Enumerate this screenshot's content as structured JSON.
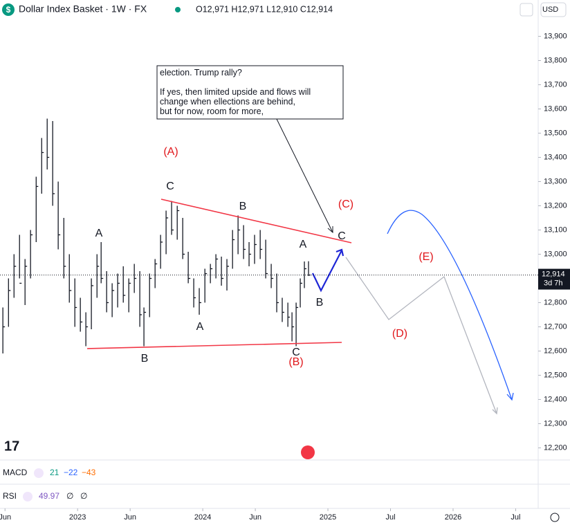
{
  "header": {
    "symbol_title": "Dollar Index Basket · 1W · FX",
    "ohlc": "O12,971 H12,971 L12,910 C12,914",
    "currency": "USD"
  },
  "note": {
    "lines": [
      "election. Trump rally?",
      "If yes, then limited upside and flows will",
      "change when ellections are behind,",
      " but for now, room for more,"
    ]
  },
  "indicators": {
    "macd": {
      "name": "MACD",
      "values": [
        "21",
        "−22",
        "−43"
      ]
    },
    "rsi": {
      "name": "RSI",
      "values": [
        "49.97",
        "∅",
        "∅"
      ]
    }
  },
  "chart_data": {
    "type": "ohlc",
    "color": "#131722",
    "x": [
      2022.403,
      2022.448,
      2022.492,
      2022.536,
      2022.58,
      2022.624,
      2022.669,
      2022.713,
      2022.757,
      2022.801,
      2022.845,
      2022.89,
      2022.934,
      2022.978,
      2023.022,
      2023.066,
      2023.11,
      2023.155,
      2023.188,
      2023.232,
      2023.276,
      2023.32,
      2023.365,
      2023.409,
      2023.453,
      2023.497,
      2023.53,
      2023.575,
      2023.619,
      2023.663,
      2023.707,
      2023.751,
      2023.796,
      2023.84,
      2023.884,
      2023.928,
      2023.972,
      2024.017,
      2024.061,
      2024.105,
      2024.149,
      2024.193,
      2024.238,
      2024.282,
      2024.326,
      2024.37,
      2024.414,
      2024.459,
      2024.503,
      2024.547,
      2024.591,
      2024.635,
      2024.68,
      2024.713,
      2024.746,
      2024.779,
      2024.812,
      2024.845
    ],
    "series": [
      {
        "name": "Dollar Index Basket",
        "high": [
          12780,
          12900,
          13000,
          13080,
          12980,
          13100,
          13320,
          13480,
          13560,
          13550,
          13300,
          13150,
          13000,
          12900,
          12820,
          12760,
          12900,
          13000,
          13050,
          12930,
          12880,
          12920,
          12950,
          12900,
          12960,
          12930,
          12780,
          12920,
          12980,
          13080,
          13180,
          13220,
          13200,
          13150,
          13010,
          12900,
          12860,
          12940,
          12960,
          13000,
          12990,
          12980,
          13100,
          13160,
          13120,
          13050,
          13080,
          13100,
          13060,
          12960,
          12920,
          12820,
          12800,
          12760,
          12800,
          12900,
          12970,
          12971
        ],
        "low": [
          12590,
          12700,
          12820,
          12900,
          12790,
          12900,
          13050,
          13250,
          13350,
          13200,
          13020,
          12900,
          12800,
          12700,
          12680,
          12620,
          12690,
          12820,
          12880,
          12760,
          12740,
          12780,
          12800,
          12760,
          12840,
          12700,
          12620,
          12740,
          12860,
          12940,
          13000,
          13080,
          13060,
          12980,
          12880,
          12780,
          12750,
          12800,
          12880,
          12900,
          12870,
          12850,
          12940,
          13000,
          12980,
          12950,
          12960,
          12980,
          12900,
          12860,
          12760,
          12720,
          12700,
          12640,
          12620,
          12780,
          12860,
          12910
        ],
        "close": [
          12700,
          12850,
          12950,
          12880,
          12950,
          13080,
          13280,
          13420,
          13400,
          13250,
          13080,
          12950,
          12850,
          12780,
          12720,
          12700,
          12870,
          12950,
          12900,
          12800,
          12850,
          12880,
          12830,
          12880,
          12900,
          12750,
          12760,
          12900,
          12960,
          13050,
          13150,
          13100,
          13180,
          13000,
          12900,
          12820,
          12800,
          12920,
          12940,
          12980,
          12900,
          12950,
          13060,
          13100,
          13020,
          13000,
          13040,
          13020,
          12920,
          12900,
          12800,
          12760,
          12740,
          12700,
          12780,
          12880,
          12940,
          12914
        ]
      }
    ],
    "xlim": [
      2022.38,
      2026.68
    ],
    "ylim": [
      12150,
      14050
    ],
    "xticks": [
      {
        "value": 2022.42,
        "label": "Jun"
      },
      2023,
      {
        "value": 2023.42,
        "label": "Jun"
      },
      2024,
      {
        "value": 2024.42,
        "label": "Jun"
      },
      2025,
      {
        "value": 2025.5,
        "label": "Jul"
      },
      2026,
      {
        "value": 2026.5,
        "label": "Jul"
      }
    ],
    "yticks": [
      {
        "value": 12200,
        "label": "12,200"
      },
      {
        "value": 12300,
        "label": "12,300"
      },
      {
        "value": 12400,
        "label": "12,400"
      },
      {
        "value": 12500,
        "label": "12,500"
      },
      {
        "value": 12600,
        "label": "12,600"
      },
      {
        "value": 12700,
        "label": "12,700"
      },
      {
        "value": 12800,
        "label": "12,800"
      },
      {
        "value": 12900,
        "label": "12,900"
      },
      {
        "value": 13000,
        "label": "13,000"
      },
      {
        "value": 13100,
        "label": "13,100"
      },
      {
        "value": 13200,
        "label": "13,200"
      },
      {
        "value": 13300,
        "label": "13,300"
      },
      {
        "value": 13400,
        "label": "13,400"
      },
      {
        "value": 13500,
        "label": "13,500"
      },
      {
        "value": 13600,
        "label": "13,600"
      },
      {
        "value": 13700,
        "label": "13,700"
      },
      {
        "value": 13800,
        "label": "13,800"
      },
      {
        "value": 13900,
        "label": "13,900"
      }
    ],
    "last_price": {
      "value": 12914,
      "label": "12,914"
    },
    "countdown": "3d 7h",
    "annotations": [
      "(A)",
      "C",
      "A",
      "B",
      "B",
      "A",
      "C",
      "(B)",
      "A",
      "B",
      "C",
      "(C)",
      "(D)",
      "(E)"
    ]
  }
}
